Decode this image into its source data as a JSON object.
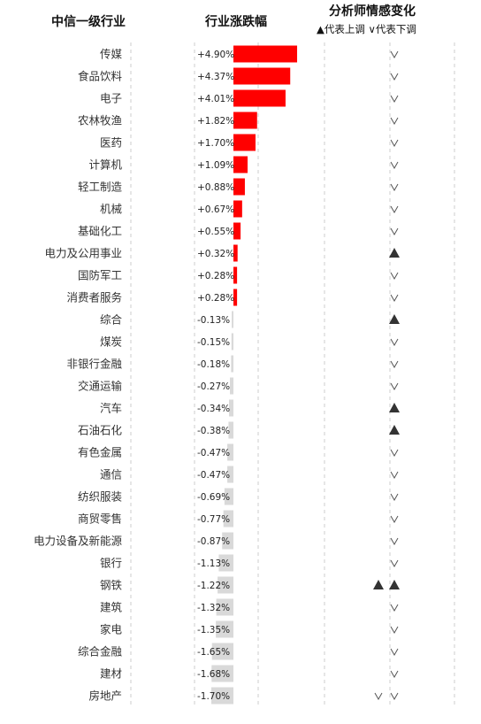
{
  "headers": {
    "industry": "中信一级行业",
    "change": "行业涨跌幅",
    "sentiment": "分析师情感变化",
    "legend": "▲代表上调 ∨代表下调"
  },
  "colors": {
    "positive": "#ff0000",
    "negative": "#d9d9d9",
    "marker": "#333333",
    "grid": "#cccccc"
  },
  "chart_data": {
    "type": "bar",
    "orientation": "horizontal",
    "categories": [
      "传媒",
      "食品饮料",
      "电子",
      "农林牧渔",
      "医药",
      "计算机",
      "轻工制造",
      "机械",
      "基础化工",
      "电力及公用事业",
      "国防军工",
      "消费者服务",
      "综合",
      "煤炭",
      "非银行金融",
      "交通运输",
      "汽车",
      "石油石化",
      "有色金属",
      "通信",
      "纺织服装",
      "商贸零售",
      "电力设备及新能源",
      "银行",
      "钢铁",
      "建筑",
      "家电",
      "综合金融",
      "建材",
      "房地产"
    ],
    "values": [
      4.9,
      4.37,
      4.01,
      1.82,
      1.7,
      1.09,
      0.88,
      0.67,
      0.55,
      0.32,
      0.28,
      0.28,
      -0.13,
      -0.15,
      -0.18,
      -0.27,
      -0.34,
      -0.38,
      -0.47,
      -0.47,
      -0.69,
      -0.77,
      -0.87,
      -1.13,
      -1.22,
      -1.32,
      -1.35,
      -1.65,
      -1.68,
      -1.7
    ],
    "labels": [
      "+4.90%",
      "+4.37%",
      "+4.01%",
      "+1.82%",
      "+1.70%",
      "+1.09%",
      "+0.88%",
      "+0.67%",
      "+0.55%",
      "+0.32%",
      "+0.28%",
      "+0.28%",
      "-0.13%",
      "-0.15%",
      "-0.18%",
      "-0.27%",
      "-0.34%",
      "-0.38%",
      "-0.47%",
      "-0.47%",
      "-0.69%",
      "-0.77%",
      "-0.87%",
      "-1.13%",
      "-1.22%",
      "-1.32%",
      "-1.35%",
      "-1.65%",
      "-1.68%",
      "-1.70%"
    ],
    "unit": "%",
    "sentiment_markers": [
      [
        "down"
      ],
      [
        "down"
      ],
      [
        "down"
      ],
      [
        "down"
      ],
      [
        "down"
      ],
      [
        "down"
      ],
      [
        "down"
      ],
      [
        "down"
      ],
      [
        "down"
      ],
      [
        "up"
      ],
      [
        "down"
      ],
      [
        "down"
      ],
      [
        "up"
      ],
      [
        "down"
      ],
      [
        "down"
      ],
      [
        "down"
      ],
      [
        "up"
      ],
      [
        "up"
      ],
      [
        "down"
      ],
      [
        "down"
      ],
      [
        "down"
      ],
      [
        "down"
      ],
      [
        "down"
      ],
      [
        "down"
      ],
      [
        "up",
        "up"
      ],
      [
        "down"
      ],
      [
        "down"
      ],
      [
        "down"
      ],
      [
        "down"
      ],
      [
        "down",
        "down"
      ]
    ]
  }
}
